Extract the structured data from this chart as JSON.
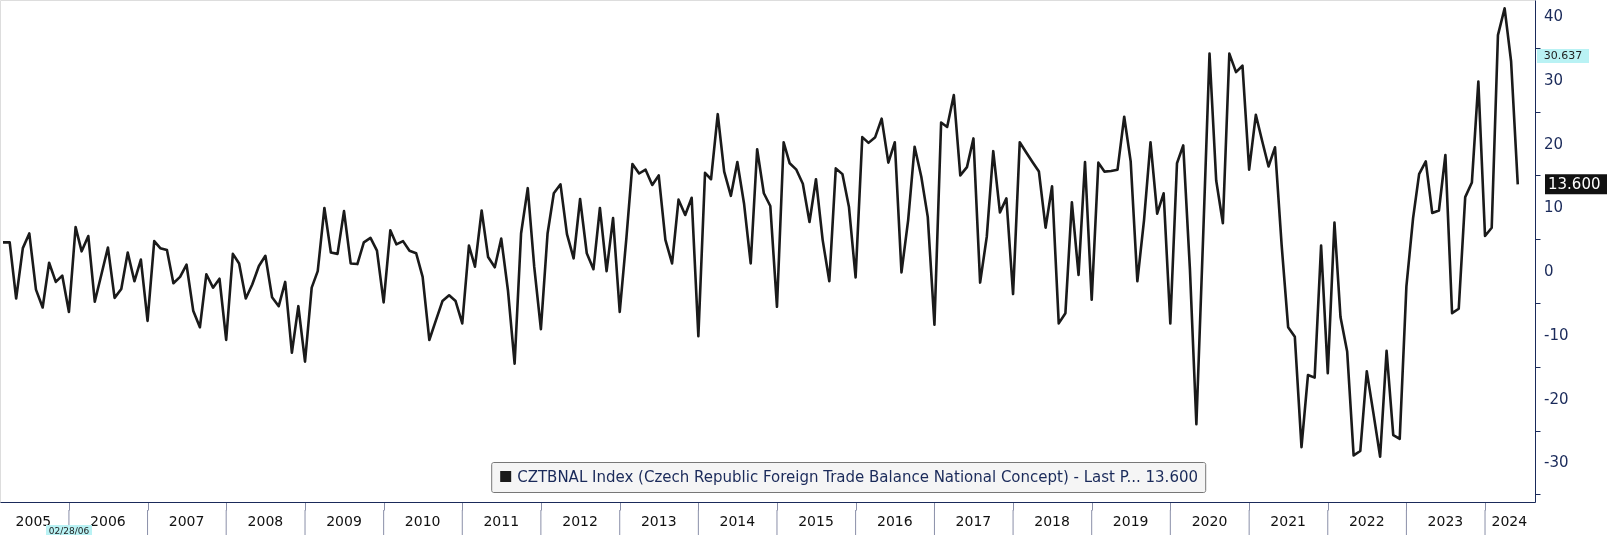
{
  "chart_data": {
    "type": "line",
    "xlim": [
      "2005-02-15",
      "2024-08-20"
    ],
    "ylim": [
      -36.2,
      42.5
    ],
    "yticks": [
      {
        "value": -35,
        "label": null
      },
      -30,
      {
        "value": -25,
        "label": null
      },
      -20,
      {
        "value": -15,
        "label": null
      },
      -10,
      {
        "value": -5,
        "label": null
      },
      0,
      {
        "value": 5,
        "label": null
      },
      10,
      {
        "value": 15,
        "label": null
      },
      20,
      {
        "value": 25,
        "label": null
      },
      30,
      {
        "value": 35,
        "label": null
      },
      40
    ],
    "xticks": [
      {
        "value": "2005-07-20",
        "label": "2005"
      },
      {
        "value": "2006-01-01",
        "label": null
      },
      {
        "value": "2006-07-01",
        "label": "2006"
      },
      {
        "value": "2007-01-01",
        "label": null
      },
      {
        "value": "2007-07-01",
        "label": "2007"
      },
      {
        "value": "2008-01-01",
        "label": null
      },
      {
        "value": "2008-07-01",
        "label": "2008"
      },
      {
        "value": "2009-01-01",
        "label": null
      },
      {
        "value": "2009-07-01",
        "label": "2009"
      },
      {
        "value": "2010-01-01",
        "label": null
      },
      {
        "value": "2010-07-01",
        "label": "2010"
      },
      {
        "value": "2011-01-01",
        "label": null
      },
      {
        "value": "2011-07-01",
        "label": "2011"
      },
      {
        "value": "2012-01-01",
        "label": null
      },
      {
        "value": "2012-07-01",
        "label": "2012"
      },
      {
        "value": "2013-01-01",
        "label": null
      },
      {
        "value": "2013-07-01",
        "label": "2013"
      },
      {
        "value": "2014-01-01",
        "label": null
      },
      {
        "value": "2014-07-01",
        "label": "2014"
      },
      {
        "value": "2015-01-01",
        "label": null
      },
      {
        "value": "2015-07-01",
        "label": "2015"
      },
      {
        "value": "2016-01-01",
        "label": null
      },
      {
        "value": "2016-07-01",
        "label": "2016"
      },
      {
        "value": "2017-01-01",
        "label": null
      },
      {
        "value": "2017-07-01",
        "label": "2017"
      },
      {
        "value": "2018-01-01",
        "label": null
      },
      {
        "value": "2018-07-01",
        "label": "2018"
      },
      {
        "value": "2019-01-01",
        "label": null
      },
      {
        "value": "2019-07-01",
        "label": "2019"
      },
      {
        "value": "2020-01-01",
        "label": null
      },
      {
        "value": "2020-07-01",
        "label": "2020"
      },
      {
        "value": "2021-01-01",
        "label": null
      },
      {
        "value": "2021-07-01",
        "label": "2021"
      },
      {
        "value": "2022-01-01",
        "label": null
      },
      {
        "value": "2022-07-01",
        "label": "2022"
      },
      {
        "value": "2023-01-01",
        "label": null
      },
      {
        "value": "2023-07-01",
        "label": "2023"
      },
      {
        "value": "2024-01-01",
        "label": null
      },
      {
        "value": "2024-04-23",
        "label": "2024"
      }
    ],
    "grid": false,
    "legend": "bottom",
    "annotations": [
      "30.637",
      "02/28/06",
      {
        "text": "13.600",
        "x": "2024-06",
        "y": 13.6
      }
    ],
    "series": [
      {
        "name": "CZTBNAL Index (Czech Republic Foreign Trade Balance National Concept) - Last P... 13.600",
        "color": "#1a1a1a",
        "x": [
          "2005-03",
          "2005-04",
          "2005-05",
          "2005-06",
          "2005-07",
          "2005-08",
          "2005-09",
          "2005-10",
          "2005-11",
          "2005-12",
          "2006-01",
          "2006-02",
          "2006-03",
          "2006-04",
          "2006-05",
          "2006-06",
          "2006-07",
          "2006-08",
          "2006-09",
          "2006-10",
          "2006-11",
          "2006-12",
          "2007-01",
          "2007-02",
          "2007-03",
          "2007-04",
          "2007-05",
          "2007-06",
          "2007-07",
          "2007-08",
          "2007-09",
          "2007-10",
          "2007-11",
          "2007-12",
          "2008-01",
          "2008-02",
          "2008-03",
          "2008-04",
          "2008-05",
          "2008-06",
          "2008-07",
          "2008-08",
          "2008-09",
          "2008-10",
          "2008-11",
          "2008-12",
          "2009-01",
          "2009-02",
          "2009-03",
          "2009-04",
          "2009-05",
          "2009-06",
          "2009-07",
          "2009-08",
          "2009-09",
          "2009-10",
          "2009-11",
          "2009-12",
          "2010-01",
          "2010-02",
          "2010-03",
          "2010-04",
          "2010-05",
          "2010-06",
          "2010-07",
          "2010-08",
          "2010-09",
          "2010-10",
          "2010-11",
          "2010-12",
          "2011-01",
          "2011-02",
          "2011-03",
          "2011-04",
          "2011-05",
          "2011-06",
          "2011-07",
          "2011-08",
          "2011-09",
          "2011-10",
          "2011-11",
          "2011-12",
          "2012-01",
          "2012-02",
          "2012-03",
          "2012-04",
          "2012-05",
          "2012-06",
          "2012-07",
          "2012-08",
          "2012-09",
          "2012-10",
          "2012-11",
          "2012-12",
          "2013-01",
          "2013-02",
          "2013-03",
          "2013-04",
          "2013-05",
          "2013-06",
          "2013-07",
          "2013-08",
          "2013-09",
          "2013-10",
          "2013-11",
          "2013-12",
          "2014-01",
          "2014-02",
          "2014-03",
          "2014-04",
          "2014-05",
          "2014-06",
          "2014-07",
          "2014-08",
          "2014-09",
          "2014-10",
          "2014-11",
          "2014-12",
          "2015-01",
          "2015-02",
          "2015-03",
          "2015-04",
          "2015-05",
          "2015-06",
          "2015-07",
          "2015-08",
          "2015-09",
          "2015-10",
          "2015-11",
          "2015-12",
          "2016-01",
          "2016-02",
          "2016-03",
          "2016-04",
          "2016-05",
          "2016-06",
          "2016-07",
          "2016-08",
          "2016-09",
          "2016-10",
          "2016-11",
          "2016-12",
          "2017-01",
          "2017-02",
          "2017-03",
          "2017-04",
          "2017-05",
          "2017-06",
          "2017-07",
          "2017-08",
          "2017-09",
          "2017-10",
          "2017-11",
          "2017-12",
          "2018-01",
          "2018-02",
          "2018-03",
          "2018-04",
          "2018-05",
          "2018-06",
          "2018-07",
          "2018-08",
          "2018-09",
          "2018-10",
          "2018-11",
          "2018-12",
          "2019-01",
          "2019-02",
          "2019-03",
          "2019-04",
          "2019-05",
          "2019-06",
          "2019-07",
          "2019-08",
          "2019-09",
          "2019-10",
          "2019-11",
          "2019-12",
          "2020-01",
          "2020-02",
          "2020-03",
          "2020-04",
          "2020-05",
          "2020-06",
          "2020-07",
          "2020-08",
          "2020-09",
          "2020-10",
          "2020-11",
          "2020-12",
          "2021-01",
          "2021-02",
          "2021-03",
          "2021-04",
          "2021-05",
          "2021-06",
          "2021-07",
          "2021-08",
          "2021-09",
          "2021-10",
          "2021-11",
          "2021-12",
          "2022-01",
          "2022-02",
          "2022-03",
          "2022-04",
          "2022-05",
          "2022-06",
          "2022-07",
          "2022-08",
          "2022-09",
          "2022-10",
          "2022-11",
          "2022-12",
          "2023-01",
          "2023-02",
          "2023-03",
          "2023-04",
          "2023-05",
          "2023-06",
          "2023-07",
          "2023-08",
          "2023-09",
          "2023-10",
          "2023-11",
          "2023-12",
          "2024-01",
          "2024-02",
          "2024-03",
          "2024-04",
          "2024-05",
          "2024-06"
        ],
        "values": [
          4.5,
          4.5,
          -4.3,
          3.6,
          5.9,
          -2.9,
          -5.7,
          1.3,
          -1.7,
          -0.7,
          -6.4,
          6.9,
          3.1,
          5.5,
          -4.8,
          -0.5,
          3.7,
          -4.2,
          -2.8,
          2.9,
          -1.6,
          1.8,
          -7.8,
          4.7,
          3.6,
          3.3,
          -1.9,
          -0.9,
          1.0,
          -6.2,
          -8.8,
          -0.5,
          -2.6,
          -1.2,
          -10.8,
          2.7,
          1.2,
          -4.3,
          -2.1,
          0.8,
          2.4,
          -4.1,
          -5.5,
          -1.7,
          -12.8,
          -5.5,
          -14.2,
          -2.6,
          0,
          9.9,
          2.9,
          2.7,
          9.4,
          1.2,
          1.1,
          4.5,
          5.2,
          3.2,
          -4.9,
          6.4,
          4.2,
          4.7,
          3.2,
          2.8,
          -0.9,
          -10.8,
          -7.7,
          -4.7,
          -3.8,
          -4.7,
          -8.2,
          4.0,
          0.7,
          9.5,
          2.2,
          0.6,
          5.1,
          -3.0,
          -14.5,
          5.9,
          13.0,
          0.7,
          -9.1,
          5.9,
          12.2,
          13.6,
          5.8,
          2.0,
          11.3,
          2.8,
          0.3,
          9.9,
          0,
          8.3,
          -6.4,
          5.2,
          16.8,
          15.3,
          15.9,
          13.5,
          15.0,
          4.9,
          1.2,
          11.2,
          8.8,
          11.5,
          -10.2,
          15.4,
          14.4,
          24.6,
          15.6,
          11.8,
          17.1,
          10.6,
          1.2,
          19.1,
          12.2,
          10.2,
          -5.6,
          20.2,
          16.9,
          15.9,
          13.7,
          7.7,
          14.4,
          4.9,
          -1.6,
          16.1,
          15.2,
          10.1,
          -1.0,
          21.0,
          20.1,
          21.0,
          23.9,
          17.0,
          20.2,
          -0.2,
          8.0,
          19.5,
          14.8,
          8.5,
          -8.4,
          23.3,
          22.6,
          27.6,
          15.0,
          16.3,
          20.8,
          -1.8,
          5.4,
          18.8,
          9.2,
          11.4,
          -3.6,
          20.2,
          18.7,
          17.1,
          15.6,
          6.8,
          13.3,
          -8.2,
          -6.6,
          10.8,
          -0.6,
          17.1,
          -4.5,
          17.0,
          15.6,
          15.7,
          15.9,
          24.2,
          17.2,
          -1.6,
          8.0,
          20.2,
          9.0,
          12.2,
          -8.2,
          16.9,
          19.7,
          0.3,
          -24.0,
          5.0,
          34.1,
          14.2,
          7.5,
          34.1,
          31.2,
          32.2,
          15.9,
          24.5,
          20.6,
          16.4,
          19.4,
          4.0,
          -8.8,
          -10.3,
          -27.6,
          -16.3,
          -16.7,
          4.0,
          -16.0,
          7.6,
          -7.2,
          -12.6,
          -28.9,
          -28.2,
          -15.7,
          -22.3,
          -29.1,
          -12.5,
          -25.7,
          -26.3,
          -2.4,
          8.3,
          15.2,
          17.2,
          9.1,
          9.5,
          18.2,
          -6.6,
          -5.9,
          11.6,
          13.9,
          29.7,
          5.5,
          6.8,
          37.0,
          41.2,
          32.9,
          13.6
        ]
      }
    ]
  }
}
